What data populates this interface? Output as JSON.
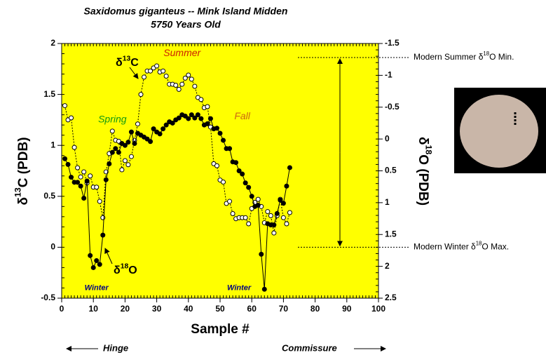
{
  "chart_data": {
    "type": "line",
    "title": "Saxidomus giganteus -- Mink Island Midden",
    "subtitle": "5750 Years Old",
    "xlabel": "Sample #",
    "ylabel": [
      "δ",
      "13",
      "C (PDB)"
    ],
    "y2label": [
      "δ",
      "18",
      "O (PDB)"
    ],
    "xlim": [
      0,
      100
    ],
    "xticks": [
      0,
      10,
      20,
      30,
      40,
      50,
      60,
      70,
      80,
      90,
      100
    ],
    "ylim": [
      -0.5,
      2
    ],
    "yticks": [
      -0.5,
      0,
      0.5,
      1,
      1.5,
      2
    ],
    "y2lim": [
      2.5,
      -1.5
    ],
    "y2ticks": [
      -1.5,
      -1,
      -0.5,
      0,
      0.5,
      1,
      1.5,
      2,
      2.5
    ],
    "background": "#ffff00",
    "x": [
      1,
      2,
      3,
      4,
      5,
      6,
      7,
      8,
      9,
      10,
      11,
      12,
      13,
      14,
      15,
      16,
      17,
      18,
      19,
      20,
      21,
      22,
      23,
      24,
      25,
      26,
      27,
      28,
      29,
      30,
      31,
      32,
      33,
      34,
      35,
      36,
      37,
      38,
      39,
      40,
      41,
      42,
      43,
      44,
      45,
      46,
      47,
      48,
      49,
      50,
      51,
      52,
      53,
      54,
      55,
      56,
      57,
      58,
      59,
      60,
      61,
      62,
      63,
      64,
      65,
      66,
      67,
      68,
      69,
      70,
      71,
      72
    ],
    "series": [
      {
        "name": [
          "δ",
          "13",
          "C"
        ],
        "color": "#000000",
        "marker": "open",
        "linestyle": "dotted",
        "axis": "y",
        "values": [
          1.39,
          1.25,
          1.27,
          0.98,
          0.78,
          0.69,
          0.74,
          0.63,
          0.7,
          0.59,
          0.59,
          0.45,
          0.29,
          0.74,
          0.92,
          1.14,
          1.05,
          1.04,
          0.76,
          0.85,
          0.81,
          0.89,
          1.05,
          1.21,
          1.5,
          1.67,
          1.73,
          1.73,
          1.76,
          1.78,
          1.72,
          1.73,
          1.68,
          1.6,
          1.6,
          1.59,
          1.55,
          1.6,
          1.66,
          1.69,
          1.65,
          1.58,
          1.47,
          1.45,
          1.37,
          1.38,
          1.18,
          0.82,
          0.8,
          0.66,
          0.64,
          0.43,
          0.45,
          0.33,
          0.28,
          0.29,
          0.29,
          0.29,
          0.23,
          0.38,
          0.44,
          0.47,
          0.4,
          0.24,
          0.35,
          0.31,
          0.14,
          0.31,
          0.47,
          0.29,
          0.23,
          0.34
        ]
      },
      {
        "name": [
          "δ",
          "18",
          "O"
        ],
        "color": "#000000",
        "marker": "filled",
        "linestyle": "solid",
        "axis": "y2",
        "values": [
          0.31,
          0.4,
          0.6,
          0.68,
          0.68,
          0.74,
          0.93,
          0.66,
          1.83,
          2.02,
          1.91,
          1.97,
          1.51,
          0.64,
          0.39,
          0.21,
          0.15,
          0.21,
          0.07,
          0.1,
          0.05,
          -0.11,
          0.07,
          -0.09,
          -0.06,
          -0.03,
          0.0,
          0.04,
          -0.16,
          -0.11,
          -0.08,
          -0.16,
          -0.22,
          -0.27,
          -0.25,
          -0.3,
          -0.33,
          -0.38,
          -0.36,
          -0.32,
          -0.38,
          -0.33,
          -0.38,
          -0.32,
          -0.22,
          -0.24,
          -0.32,
          -0.16,
          -0.17,
          -0.09,
          0.02,
          0.15,
          0.15,
          0.36,
          0.37,
          0.5,
          0.55,
          0.69,
          0.76,
          0.9,
          1.06,
          1.04,
          1.81,
          2.36,
          1.33,
          1.35,
          1.35,
          1.17,
          0.96,
          1.01,
          0.74,
          0.45
        ]
      }
    ],
    "reference_lines": [
      {
        "value": -1.28,
        "label": [
          "Modern Summer δ",
          "18",
          "O Min."
        ]
      },
      {
        "value": 1.7,
        "label": [
          "Modern Winter δ",
          "18",
          "O Max."
        ]
      }
    ],
    "seasons": [
      {
        "text": "Summer",
        "color": "#cc2200",
        "x": 38,
        "y": 1.9
      },
      {
        "text": "Spring",
        "color": "#119911",
        "x": 16,
        "y": 1.25
      },
      {
        "text": "Fall",
        "color": "#cc6611",
        "x": 57,
        "y": 1.28
      },
      {
        "text": "Winter",
        "color": "#000080",
        "x": 11,
        "y": -0.4
      },
      {
        "text": "Winter",
        "color": "#000080",
        "x": 56,
        "y": -0.4
      }
    ],
    "direction": [
      "Hinge",
      "Commissure"
    ]
  }
}
